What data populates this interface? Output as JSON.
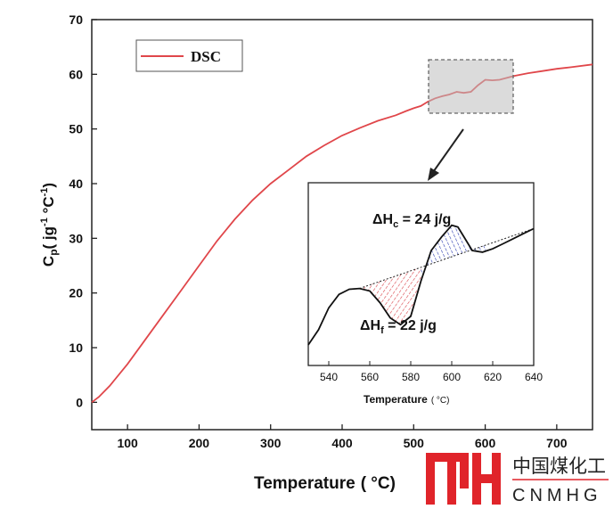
{
  "chart_data": [
    {
      "type": "line",
      "xlabel": "Temperature",
      "xlabel_unit": "( °C)",
      "ylabel_main": "C",
      "ylabel_sub": "p",
      "ylabel_rest": "( jg",
      "ylabel_exp1": "-1",
      "ylabel_mid": " °C",
      "ylabel_exp2": "-1",
      "ylabel_close": ")",
      "xlim": [
        50,
        750
      ],
      "ylim": [
        -5,
        70
      ],
      "x_ticks": [
        100,
        200,
        300,
        400,
        500,
        600,
        700
      ],
      "y_ticks": [
        0,
        10,
        20,
        30,
        40,
        50,
        60,
        70
      ],
      "legend": {
        "label": "DSC",
        "placement": "top-left"
      },
      "series": [
        {
          "name": "DSC",
          "color": "#e0464a",
          "x": [
            50,
            60,
            75,
            100,
            125,
            150,
            175,
            200,
            225,
            250,
            275,
            300,
            325,
            350,
            375,
            400,
            425,
            450,
            475,
            490,
            500,
            510,
            520,
            530,
            540,
            550,
            560,
            570,
            580,
            590,
            600,
            610,
            620,
            640,
            660,
            680,
            700,
            720,
            750
          ],
          "y": [
            0,
            1,
            3,
            7,
            11.5,
            16,
            20.5,
            25,
            29.5,
            33.5,
            37,
            40,
            42.5,
            45,
            47,
            48.8,
            50.2,
            51.5,
            52.5,
            53.3,
            53.8,
            54.2,
            55,
            55.6,
            56,
            56.3,
            56.8,
            56.6,
            56.8,
            58,
            59,
            58.9,
            59,
            59.7,
            60.2,
            60.6,
            61,
            61.3,
            61.8
          ]
        }
      ]
    },
    {
      "type": "line",
      "xlabel": "Temperature",
      "xlabel_unit": "( °C)",
      "xlim": [
        530,
        640
      ],
      "ylim": [
        0,
        1
      ],
      "x_ticks": [
        540,
        560,
        580,
        600,
        620,
        640
      ],
      "annotations": {
        "crystallization": {
          "label": "ΔH",
          "sub": "c",
          "value": " = 24 j/g"
        },
        "fusion": {
          "label": "ΔH",
          "sub": "f",
          "value": " = 22 j/g"
        }
      },
      "fill_colors": {
        "fusion": "#d9434a",
        "crystallization": "#2a3ab0"
      },
      "series": [
        {
          "color": "#111111",
          "x": [
            530,
            535,
            540,
            545,
            550,
            555,
            560,
            565,
            570,
            575,
            580,
            585,
            590,
            595,
            600,
            603,
            606,
            610,
            615,
            620,
            625,
            630,
            635,
            640
          ],
          "y": [
            0.08,
            0.17,
            0.3,
            0.38,
            0.41,
            0.415,
            0.4,
            0.33,
            0.24,
            0.2,
            0.25,
            0.46,
            0.64,
            0.72,
            0.79,
            0.78,
            0.72,
            0.64,
            0.63,
            0.65,
            0.68,
            0.71,
            0.74,
            0.77
          ]
        }
      ],
      "baseline": {
        "x": [
          555,
          640
        ],
        "y": [
          0.415,
          0.77
        ]
      },
      "fusion_range": [
        555,
        585
      ],
      "crystallization_range": [
        585,
        617
      ]
    }
  ],
  "logo": {
    "mark": "CNMHG-mark",
    "chinese": "中国煤化工",
    "english": "CNMHG",
    "color": "#e0242a"
  }
}
